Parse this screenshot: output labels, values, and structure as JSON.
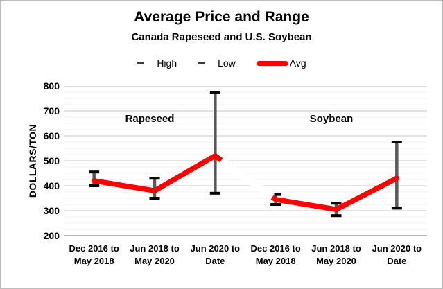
{
  "window": {
    "title": "Average Price and Range",
    "subtitle": "Canada Rapeseed and U.S. Soybean"
  },
  "chart_data": {
    "type": "line",
    "variant": "average-with-high-low-range-bars",
    "title": "Average Price and Range",
    "subtitle": "Canada Rapeseed and U.S. Soybean",
    "ylabel": "DOLLARS/TON",
    "xlabel": "",
    "ylim": [
      200,
      800
    ],
    "y_major_step": 100,
    "y_minor_step": 25,
    "grid": "horizontal major and minor, light gray",
    "legend_position": "top-center",
    "legend": [
      {
        "name": "High",
        "marker": "short-dark-dash"
      },
      {
        "name": "Low",
        "marker": "short-dark-dash"
      },
      {
        "name": "Avg",
        "marker": "thick-red-line"
      }
    ],
    "group_labels": [
      "Rapeseed",
      "Soybean"
    ],
    "line_break_between_groups": true,
    "categories": [
      [
        "Dec 2016 to",
        "May 2018"
      ],
      [
        "Jun 2018 to",
        "May 2020"
      ],
      [
        "Jun 2020 to",
        "Date"
      ],
      [
        "Dec 2016 to",
        "May 2018"
      ],
      [
        "Jun 2018 to",
        "May 2020"
      ],
      [
        "Jun 2020 to",
        "Date"
      ]
    ],
    "points": [
      {
        "group": "Rapeseed",
        "category": "Dec 2016 to May 2018",
        "high": 455,
        "low": 400,
        "avg": 420
      },
      {
        "group": "Rapeseed",
        "category": "Jun 2018 to May 2020",
        "high": 430,
        "low": 350,
        "avg": 380
      },
      {
        "group": "Rapeseed",
        "category": "Jun 2020 to Date",
        "high": 775,
        "low": 370,
        "avg": 520
      },
      {
        "group": "Soybean",
        "category": "Dec 2016 to May 2018",
        "high": 365,
        "low": 325,
        "avg": 345
      },
      {
        "group": "Soybean",
        "category": "Jun 2018 to May 2020",
        "high": 330,
        "low": 280,
        "avg": 305
      },
      {
        "group": "Soybean",
        "category": "Jun 2020 to Date",
        "high": 575,
        "low": 310,
        "avg": 430
      }
    ],
    "colors": {
      "avg_line": "#ff0000",
      "error_bar_stem": "#595959",
      "error_bar_cap": "#000000",
      "major_gridline": "#c7c7c7",
      "minor_gridline": "#efefef",
      "axis_line": "#a3a3a3",
      "text": "#000000",
      "background": "#ffffff"
    }
  }
}
